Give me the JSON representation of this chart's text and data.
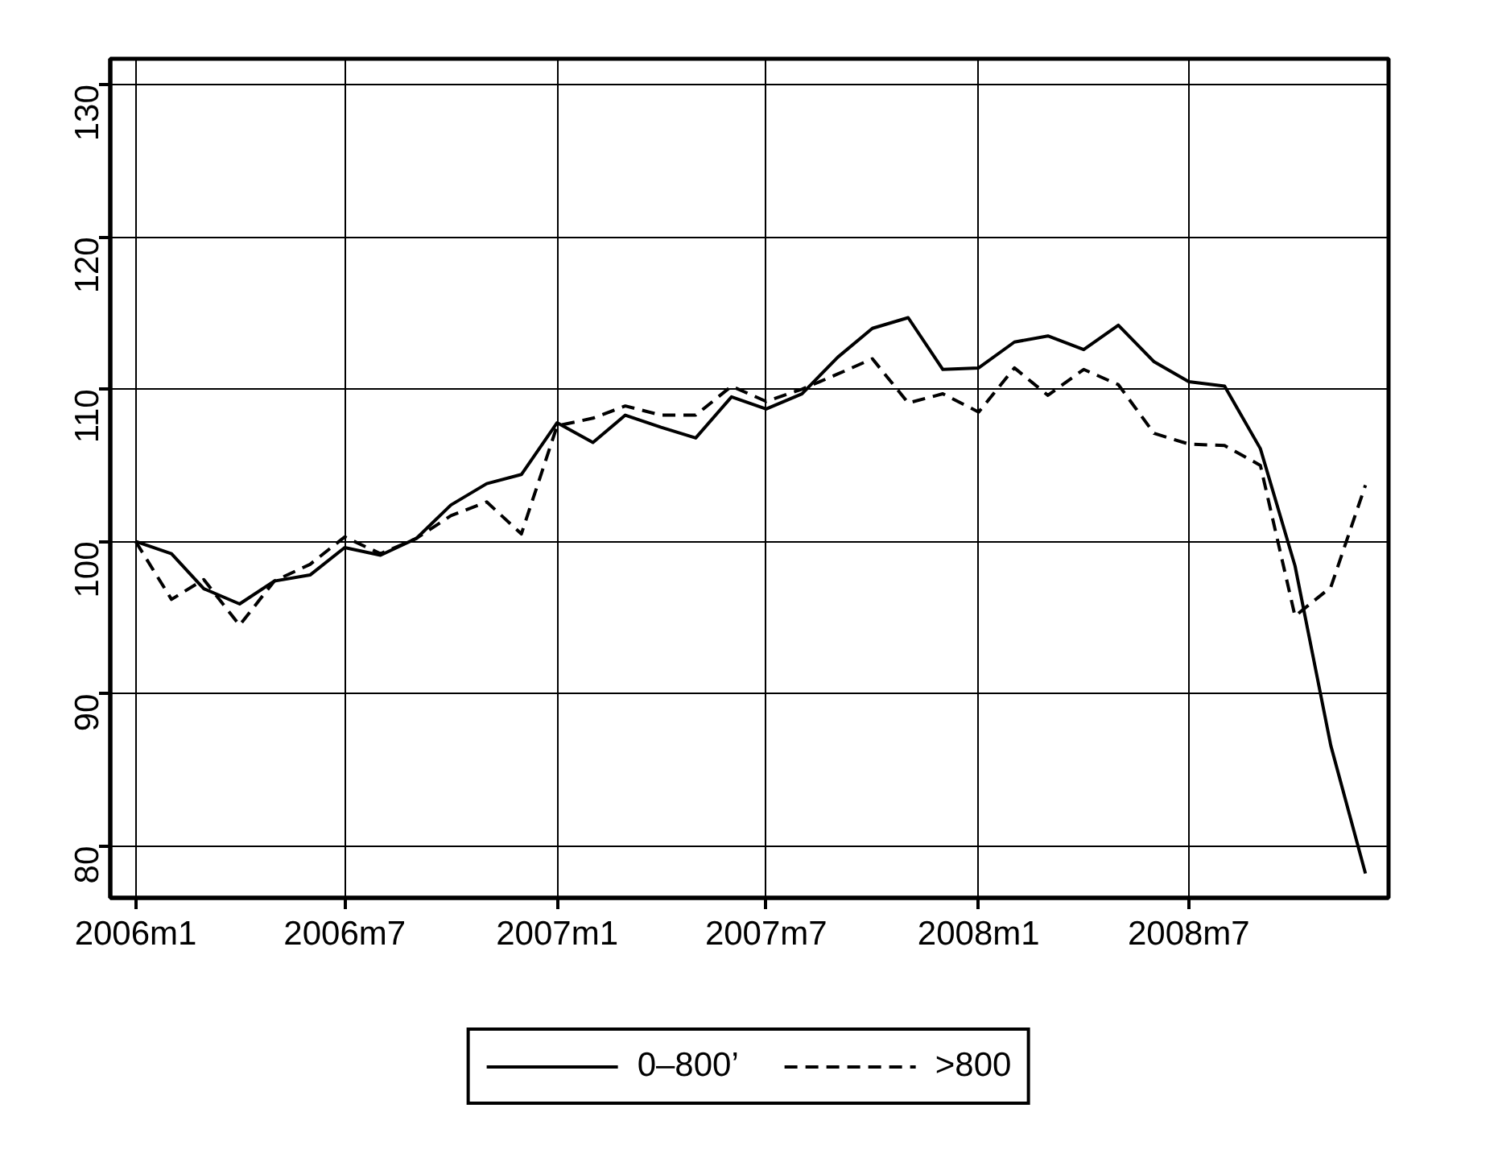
{
  "chart_data": {
    "type": "line",
    "x": [
      "2006-01",
      "2006-02",
      "2006-03",
      "2006-04",
      "2006-05",
      "2006-06",
      "2006-07",
      "2006-08",
      "2006-09",
      "2006-10",
      "2006-11",
      "2006-12",
      "2007-01",
      "2007-02",
      "2007-03",
      "2007-04",
      "2007-05",
      "2007-06",
      "2007-07",
      "2007-08",
      "2007-09",
      "2007-10",
      "2007-11",
      "2007-12",
      "2008-01",
      "2008-02",
      "2008-03",
      "2008-04",
      "2008-05",
      "2008-06",
      "2008-07",
      "2008-08",
      "2008-09",
      "2008-10",
      "2008-11",
      "2008-12"
    ],
    "series": [
      {
        "name": "0–800’",
        "color": "#000000",
        "line_style": "solid",
        "values": [
          100,
          99.2,
          96.9,
          95.9,
          97.4,
          97.8,
          99.6,
          99.1,
          100.2,
          102.4,
          103.8,
          104.4,
          107.8,
          106.5,
          108.3,
          107.5,
          106.8,
          109.5,
          108.7,
          109.7,
          112.1,
          114.0,
          114.7,
          111.3,
          111.4,
          113.1,
          113.5,
          112.6,
          114.2,
          111.8,
          110.5,
          110.2,
          106.1,
          98.4,
          86.6,
          78.2
        ]
      },
      {
        "name": ">800",
        "color": "#000000",
        "line_style": "dashed",
        "values": [
          100,
          96.2,
          97.5,
          94.5,
          97.4,
          98.5,
          100.3,
          99.2,
          100.2,
          101.7,
          102.6,
          100.5,
          107.6,
          108.1,
          108.9,
          108.3,
          108.3,
          110.2,
          109.2,
          110.0,
          111.0,
          112.0,
          109.1,
          109.7,
          108.5,
          111.4,
          109.6,
          111.3,
          110.3,
          107.1,
          106.4,
          106.3,
          105.0,
          95.1,
          97.0,
          103.7
        ]
      }
    ],
    "xlim": [
      "2005-12-10",
      "2008-12-21"
    ],
    "xticks": [
      {
        "value": "2006-01",
        "label": "2006m1"
      },
      {
        "value": "2006-07",
        "label": "2006m7"
      },
      {
        "value": "2007-01",
        "label": "2007m1"
      },
      {
        "value": "2007-07",
        "label": "2007m7"
      },
      {
        "value": "2008-01",
        "label": "2008m1"
      },
      {
        "value": "2008-07",
        "label": "2008m7"
      }
    ],
    "ylim": [
      76.6,
      131.7
    ],
    "yticks": [
      80,
      90,
      100,
      110,
      120,
      130
    ],
    "grid": true,
    "legend": "bottom"
  }
}
